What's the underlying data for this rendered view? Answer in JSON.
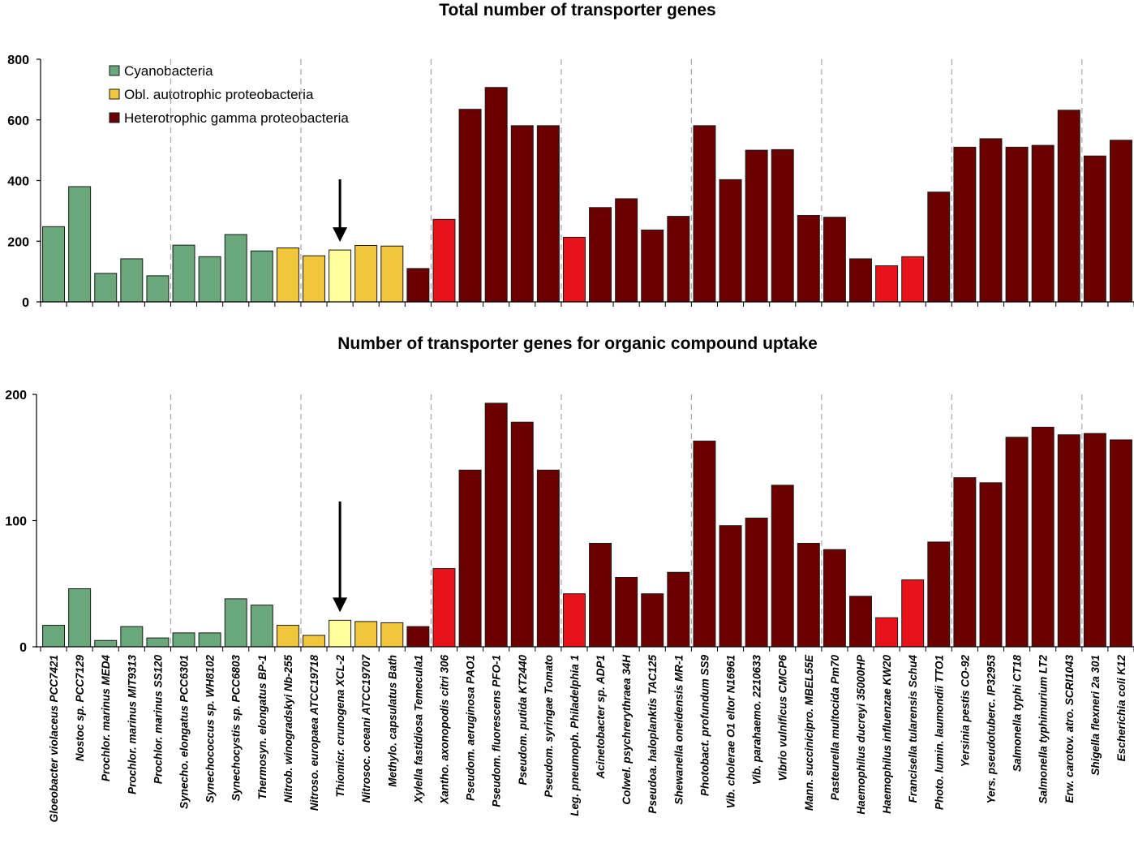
{
  "colors": {
    "cyano": "#6aa77a",
    "auto": "#f0c73a",
    "auto_highlight": "#ffff99",
    "hetero": "#6b0000",
    "hetero_red": "#e8131a"
  },
  "legend": [
    {
      "label": "Cyanobacteria",
      "group": "cyano"
    },
    {
      "label": "Obl. autotrophic proteobacteria",
      "group": "auto"
    },
    {
      "label": "Heterotrophic gamma proteobacteria",
      "group": "hetero"
    }
  ],
  "chart_data": [
    {
      "type": "bar",
      "title": "Total number of transporter genes",
      "ylim": [
        0,
        800
      ],
      "yticks": [
        0,
        200,
        400,
        600,
        800
      ],
      "values": [
        248,
        380,
        94,
        142,
        86,
        187,
        149,
        222,
        168,
        178,
        152,
        171,
        186,
        184,
        110,
        272,
        635,
        707,
        581,
        581,
        213,
        311,
        340,
        237,
        282,
        581,
        403,
        500,
        502,
        285,
        279,
        142,
        119,
        149,
        362,
        510,
        538,
        510,
        516,
        632,
        481,
        533
      ],
      "arrow_at": 11
    },
    {
      "type": "bar",
      "title": "Number of transporter genes for organic compound uptake",
      "ylim": [
        0,
        200
      ],
      "yticks": [
        0,
        100,
        200
      ],
      "values": [
        17,
        46,
        5,
        16,
        7,
        11,
        11,
        38,
        33,
        17,
        9,
        21,
        20,
        19,
        16,
        62,
        140,
        193,
        178,
        140,
        42,
        82,
        55,
        42,
        59,
        163,
        96,
        102,
        128,
        82,
        77,
        40,
        23,
        53,
        83,
        134,
        130,
        166,
        174,
        168,
        169,
        164
      ],
      "arrow_at": 11
    }
  ],
  "categories": [
    "Gloeobacter violaceus PCC7421",
    "Nostoc sp. PCC7129",
    "Prochlor. marinus MED4",
    "Prochlor. marinus MIT9313",
    "Prochlor. marinus SS120",
    "Synecho. elongatus PCC6301",
    "Synechococcus sp. WH8102",
    "Synechocystis sp. PCC6803",
    "Thermosyn. elongatus BP-1",
    "Nitrob. winogradskyi Nb-255",
    "Nitroso. europaea ATCC19718",
    "Thiomicr. crunogena XCL-2",
    "Nitrosoc. oceani ATCC19707",
    "Methylo. capsulatus Bath",
    "Xylella fastidiosa Temecula1",
    "Xantho. axonopodis citri 306",
    "Pseudom. aeruginosa PAO1",
    "Pseudom. fluorescens PFO-1",
    "Pseudom. putida KT2440",
    "Pseudom. syringae Tomato",
    "Leg. pneumoph. Philadelphia 1",
    "Acinetobacter sp. ADP1",
    "Colwel. psychrerythraea 34H",
    "Pseudoa. haloplanktis TAC125",
    "Shewanella oneidensis MR-1",
    "Photobact. profundum SS9",
    "Vib. cholerae O1 eltor N16961",
    "Vib. parahaemo. 2210633",
    "Vibrio vulnificus CMCP6",
    "Mann. succinicipro. MBEL55E",
    "Pasteurella multocida Pm70",
    "Haemophilus ducreyi 35000HP",
    "Haemophilus influenzae KW20",
    "Francisella tularensis Schu4",
    "Photo. lumin. laumondii TTO1",
    "Yersinia pestis CO-92",
    "Yers. pseudotuberc. IP32953",
    "Salmonella typhi CT18",
    "Salmonella typhimurium LT2",
    "Erw. carotov. atro. SCRI1043",
    "Shigella flexneri 2a 301",
    "Escherichia coli K12"
  ],
  "groups": [
    "cyano",
    "cyano",
    "cyano",
    "cyano",
    "cyano",
    "cyano",
    "cyano",
    "cyano",
    "cyano",
    "auto",
    "auto",
    "auto_highlight",
    "auto",
    "auto",
    "hetero",
    "hetero_red",
    "hetero",
    "hetero",
    "hetero",
    "hetero",
    "hetero_red",
    "hetero",
    "hetero",
    "hetero",
    "hetero",
    "hetero",
    "hetero",
    "hetero",
    "hetero",
    "hetero",
    "hetero",
    "hetero",
    "hetero_red",
    "hetero_red",
    "hetero",
    "hetero",
    "hetero",
    "hetero",
    "hetero",
    "hetero",
    "hetero",
    "hetero"
  ],
  "separators_after": [
    4,
    9,
    14,
    19,
    24,
    29,
    34,
    39
  ]
}
